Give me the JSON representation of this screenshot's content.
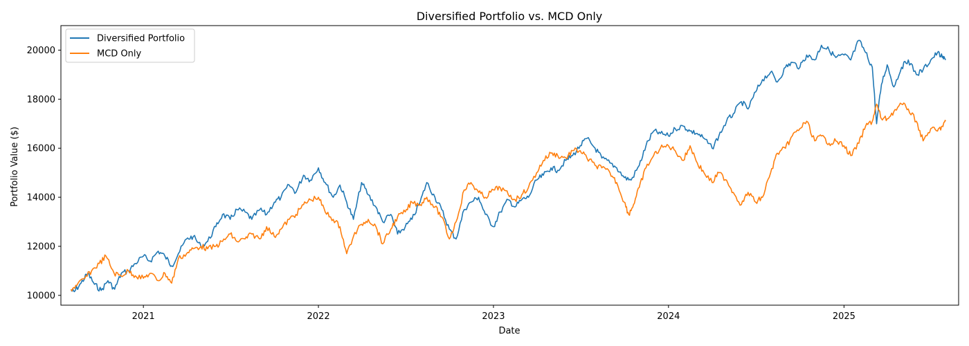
{
  "chart_data": {
    "type": "line",
    "title": "Diversified Portfolio vs. MCD Only",
    "xlabel": "Date",
    "ylabel": "Portfolio Value ($)",
    "xlim": [
      "2020-07-13",
      "2025-08-28"
    ],
    "ylim": [
      9600,
      21000
    ],
    "x_ticks": [
      "2021",
      "2022",
      "2023",
      "2024",
      "2025"
    ],
    "y_ticks": [
      10000,
      12000,
      14000,
      16000,
      18000,
      20000
    ],
    "grid": false,
    "legend_position": "top-left",
    "colors": {
      "diversified": "#1f77b4",
      "mcd": "#ff7f0e"
    },
    "series": [
      {
        "name": "Diversified Portfolio",
        "color": "#1f77b4",
        "points": [
          [
            "2020-08-03",
            10200
          ],
          [
            "2020-08-10",
            10150
          ],
          [
            "2020-08-24",
            10500
          ],
          [
            "2020-09-07",
            10900
          ],
          [
            "2020-09-21",
            10450
          ],
          [
            "2020-10-05",
            10200
          ],
          [
            "2020-10-19",
            10600
          ],
          [
            "2020-11-02",
            10250
          ],
          [
            "2020-11-16",
            10900
          ],
          [
            "2020-12-01",
            11000
          ],
          [
            "2020-12-15",
            11300
          ],
          [
            "2021-01-01",
            11600
          ],
          [
            "2021-01-15",
            11400
          ],
          [
            "2021-02-01",
            11800
          ],
          [
            "2021-02-15",
            11600
          ],
          [
            "2021-03-01",
            11200
          ],
          [
            "2021-03-15",
            11700
          ],
          [
            "2021-04-01",
            12300
          ],
          [
            "2021-04-15",
            12400
          ],
          [
            "2021-05-01",
            12000
          ],
          [
            "2021-05-15",
            12200
          ],
          [
            "2021-06-01",
            12800
          ],
          [
            "2021-06-15",
            13300
          ],
          [
            "2021-07-01",
            13100
          ],
          [
            "2021-07-15",
            13500
          ],
          [
            "2021-08-01",
            13400
          ],
          [
            "2021-08-15",
            13100
          ],
          [
            "2021-09-01",
            13500
          ],
          [
            "2021-09-15",
            13300
          ],
          [
            "2021-10-01",
            13800
          ],
          [
            "2021-10-15",
            14000
          ],
          [
            "2021-11-01",
            14500
          ],
          [
            "2021-11-15",
            14200
          ],
          [
            "2021-12-01",
            14900
          ],
          [
            "2021-12-15",
            14700
          ],
          [
            "2022-01-01",
            15200
          ],
          [
            "2022-01-15",
            14600
          ],
          [
            "2022-02-01",
            14000
          ],
          [
            "2022-02-15",
            14500
          ],
          [
            "2022-03-01",
            13800
          ],
          [
            "2022-03-15",
            13100
          ],
          [
            "2022-04-01",
            14600
          ],
          [
            "2022-04-15",
            14100
          ],
          [
            "2022-05-01",
            13600
          ],
          [
            "2022-05-15",
            13000
          ],
          [
            "2022-06-01",
            13300
          ],
          [
            "2022-06-15",
            12500
          ],
          [
            "2022-07-01",
            12800
          ],
          [
            "2022-07-15",
            13100
          ],
          [
            "2022-08-01",
            13800
          ],
          [
            "2022-08-15",
            14600
          ],
          [
            "2022-09-01",
            14000
          ],
          [
            "2022-09-15",
            13500
          ],
          [
            "2022-10-01",
            12700
          ],
          [
            "2022-10-15",
            12300
          ],
          [
            "2022-11-01",
            13500
          ],
          [
            "2022-11-15",
            13800
          ],
          [
            "2022-12-01",
            14000
          ],
          [
            "2022-12-15",
            13300
          ],
          [
            "2023-01-01",
            12800
          ],
          [
            "2023-01-15",
            13400
          ],
          [
            "2023-02-01",
            13900
          ],
          [
            "2023-02-15",
            13600
          ],
          [
            "2023-03-01",
            13900
          ],
          [
            "2023-03-15",
            14000
          ],
          [
            "2023-04-01",
            14700
          ],
          [
            "2023-04-15",
            14900
          ],
          [
            "2023-05-01",
            15200
          ],
          [
            "2023-05-15",
            15100
          ],
          [
            "2023-06-01",
            15500
          ],
          [
            "2023-06-15",
            15700
          ],
          [
            "2023-07-01",
            16100
          ],
          [
            "2023-07-15",
            16400
          ],
          [
            "2023-08-01",
            16000
          ],
          [
            "2023-08-15",
            15600
          ],
          [
            "2023-09-01",
            15400
          ],
          [
            "2023-09-15",
            15200
          ],
          [
            "2023-10-01",
            14800
          ],
          [
            "2023-10-15",
            14700
          ],
          [
            "2023-11-01",
            15300
          ],
          [
            "2023-11-15",
            16100
          ],
          [
            "2023-12-01",
            16700
          ],
          [
            "2023-12-15",
            16600
          ],
          [
            "2024-01-01",
            16500
          ],
          [
            "2024-01-15",
            16800
          ],
          [
            "2024-02-01",
            16900
          ],
          [
            "2024-02-15",
            16700
          ],
          [
            "2024-03-01",
            16600
          ],
          [
            "2024-03-15",
            16400
          ],
          [
            "2024-04-01",
            16000
          ],
          [
            "2024-04-15",
            16500
          ],
          [
            "2024-05-01",
            17100
          ],
          [
            "2024-05-15",
            17400
          ],
          [
            "2024-06-01",
            17900
          ],
          [
            "2024-06-15",
            17600
          ],
          [
            "2024-07-01",
            18300
          ],
          [
            "2024-07-15",
            18800
          ],
          [
            "2024-08-01",
            19100
          ],
          [
            "2024-08-15",
            18700
          ],
          [
            "2024-09-01",
            19300
          ],
          [
            "2024-09-15",
            19500
          ],
          [
            "2024-10-01",
            19300
          ],
          [
            "2024-10-15",
            19800
          ],
          [
            "2024-11-01",
            19600
          ],
          [
            "2024-11-15",
            20200
          ],
          [
            "2024-12-01",
            20000
          ],
          [
            "2024-12-15",
            19700
          ],
          [
            "2025-01-01",
            19800
          ],
          [
            "2025-01-15",
            19600
          ],
          [
            "2025-02-01",
            20400
          ],
          [
            "2025-02-15",
            19900
          ],
          [
            "2025-03-01",
            19300
          ],
          [
            "2025-03-10",
            17000
          ],
          [
            "2025-03-20",
            18600
          ],
          [
            "2025-04-01",
            19400
          ],
          [
            "2025-04-15",
            18500
          ],
          [
            "2025-05-01",
            19300
          ],
          [
            "2025-05-15",
            19600
          ],
          [
            "2025-06-01",
            19000
          ],
          [
            "2025-06-15",
            19200
          ],
          [
            "2025-07-01",
            19600
          ],
          [
            "2025-07-15",
            19900
          ],
          [
            "2025-07-25",
            19700
          ],
          [
            "2025-08-01",
            19600
          ]
        ]
      },
      {
        "name": "MCD Only",
        "color": "#ff7f0e",
        "points": [
          [
            "2020-08-03",
            10250
          ],
          [
            "2020-08-15",
            10400
          ],
          [
            "2020-09-01",
            10700
          ],
          [
            "2020-09-15",
            11000
          ],
          [
            "2020-10-01",
            11300
          ],
          [
            "2020-10-15",
            11600
          ],
          [
            "2020-11-01",
            10900
          ],
          [
            "2020-11-15",
            10800
          ],
          [
            "2020-12-01",
            11000
          ],
          [
            "2020-12-15",
            10800
          ],
          [
            "2021-01-01",
            10700
          ],
          [
            "2021-01-15",
            10900
          ],
          [
            "2021-02-01",
            10600
          ],
          [
            "2021-02-15",
            10900
          ],
          [
            "2021-03-01",
            10500
          ],
          [
            "2021-03-15",
            11500
          ],
          [
            "2021-04-01",
            11700
          ],
          [
            "2021-04-15",
            11900
          ],
          [
            "2021-05-01",
            12000
          ],
          [
            "2021-05-15",
            11900
          ],
          [
            "2021-06-01",
            12000
          ],
          [
            "2021-06-15",
            12200
          ],
          [
            "2021-07-01",
            12500
          ],
          [
            "2021-07-15",
            12200
          ],
          [
            "2021-08-01",
            12300
          ],
          [
            "2021-08-15",
            12500
          ],
          [
            "2021-09-01",
            12300
          ],
          [
            "2021-09-15",
            12800
          ],
          [
            "2021-10-01",
            12400
          ],
          [
            "2021-10-15",
            12700
          ],
          [
            "2021-11-01",
            13100
          ],
          [
            "2021-11-15",
            13300
          ],
          [
            "2021-12-01",
            13700
          ],
          [
            "2021-12-15",
            13900
          ],
          [
            "2022-01-01",
            14000
          ],
          [
            "2022-01-15",
            13400
          ],
          [
            "2022-02-01",
            13100
          ],
          [
            "2022-02-15",
            12800
          ],
          [
            "2022-03-01",
            11700
          ],
          [
            "2022-03-15",
            12400
          ],
          [
            "2022-04-01",
            12900
          ],
          [
            "2022-04-15",
            13100
          ],
          [
            "2022-05-01",
            12800
          ],
          [
            "2022-05-15",
            12100
          ],
          [
            "2022-06-01",
            12700
          ],
          [
            "2022-06-15",
            13200
          ],
          [
            "2022-07-01",
            13400
          ],
          [
            "2022-07-15",
            13800
          ],
          [
            "2022-08-01",
            13700
          ],
          [
            "2022-08-15",
            14000
          ],
          [
            "2022-09-01",
            13600
          ],
          [
            "2022-09-15",
            13200
          ],
          [
            "2022-10-01",
            12300
          ],
          [
            "2022-10-15",
            13000
          ],
          [
            "2022-11-01",
            14300
          ],
          [
            "2022-11-15",
            14600
          ],
          [
            "2022-12-01",
            14200
          ],
          [
            "2022-12-15",
            14000
          ],
          [
            "2023-01-01",
            14300
          ],
          [
            "2023-01-15",
            14400
          ],
          [
            "2023-02-01",
            14100
          ],
          [
            "2023-02-15",
            13900
          ],
          [
            "2023-03-01",
            14100
          ],
          [
            "2023-03-15",
            14400
          ],
          [
            "2023-04-01",
            15000
          ],
          [
            "2023-04-15",
            15500
          ],
          [
            "2023-05-01",
            15800
          ],
          [
            "2023-05-15",
            15700
          ],
          [
            "2023-06-01",
            15600
          ],
          [
            "2023-06-15",
            15900
          ],
          [
            "2023-07-01",
            15900
          ],
          [
            "2023-07-15",
            15600
          ],
          [
            "2023-08-01",
            15300
          ],
          [
            "2023-08-15",
            15200
          ],
          [
            "2023-09-01",
            15000
          ],
          [
            "2023-09-15",
            14600
          ],
          [
            "2023-10-01",
            13800
          ],
          [
            "2023-10-10",
            13300
          ],
          [
            "2023-10-20",
            13700
          ],
          [
            "2023-11-01",
            14400
          ],
          [
            "2023-11-15",
            15200
          ],
          [
            "2023-12-01",
            15700
          ],
          [
            "2023-12-15",
            16000
          ],
          [
            "2024-01-01",
            16100
          ],
          [
            "2024-01-15",
            15900
          ],
          [
            "2024-02-01",
            15500
          ],
          [
            "2024-02-15",
            16100
          ],
          [
            "2024-03-01",
            15400
          ],
          [
            "2024-03-15",
            15000
          ],
          [
            "2024-04-01",
            14600
          ],
          [
            "2024-04-15",
            15000
          ],
          [
            "2024-05-01",
            14700
          ],
          [
            "2024-05-15",
            14200
          ],
          [
            "2024-06-01",
            13700
          ],
          [
            "2024-06-15",
            14200
          ],
          [
            "2024-07-01",
            13800
          ],
          [
            "2024-07-15",
            14000
          ],
          [
            "2024-08-01",
            15000
          ],
          [
            "2024-08-15",
            15800
          ],
          [
            "2024-09-01",
            16000
          ],
          [
            "2024-09-15",
            16500
          ],
          [
            "2024-10-01",
            16800
          ],
          [
            "2024-10-15",
            17100
          ],
          [
            "2024-11-01",
            16300
          ],
          [
            "2024-11-15",
            16500
          ],
          [
            "2024-12-01",
            16200
          ],
          [
            "2024-12-15",
            16300
          ],
          [
            "2025-01-01",
            16100
          ],
          [
            "2025-01-15",
            15700
          ],
          [
            "2025-02-01",
            16200
          ],
          [
            "2025-02-15",
            16900
          ],
          [
            "2025-03-01",
            17100
          ],
          [
            "2025-03-10",
            17800
          ],
          [
            "2025-03-20",
            17200
          ],
          [
            "2025-04-01",
            17200
          ],
          [
            "2025-04-15",
            17500
          ],
          [
            "2025-05-01",
            17800
          ],
          [
            "2025-05-15",
            17600
          ],
          [
            "2025-06-01",
            17100
          ],
          [
            "2025-06-15",
            16300
          ],
          [
            "2025-07-01",
            16800
          ],
          [
            "2025-07-15",
            16700
          ],
          [
            "2025-07-25",
            16900
          ],
          [
            "2025-08-01",
            17100
          ]
        ]
      }
    ]
  }
}
